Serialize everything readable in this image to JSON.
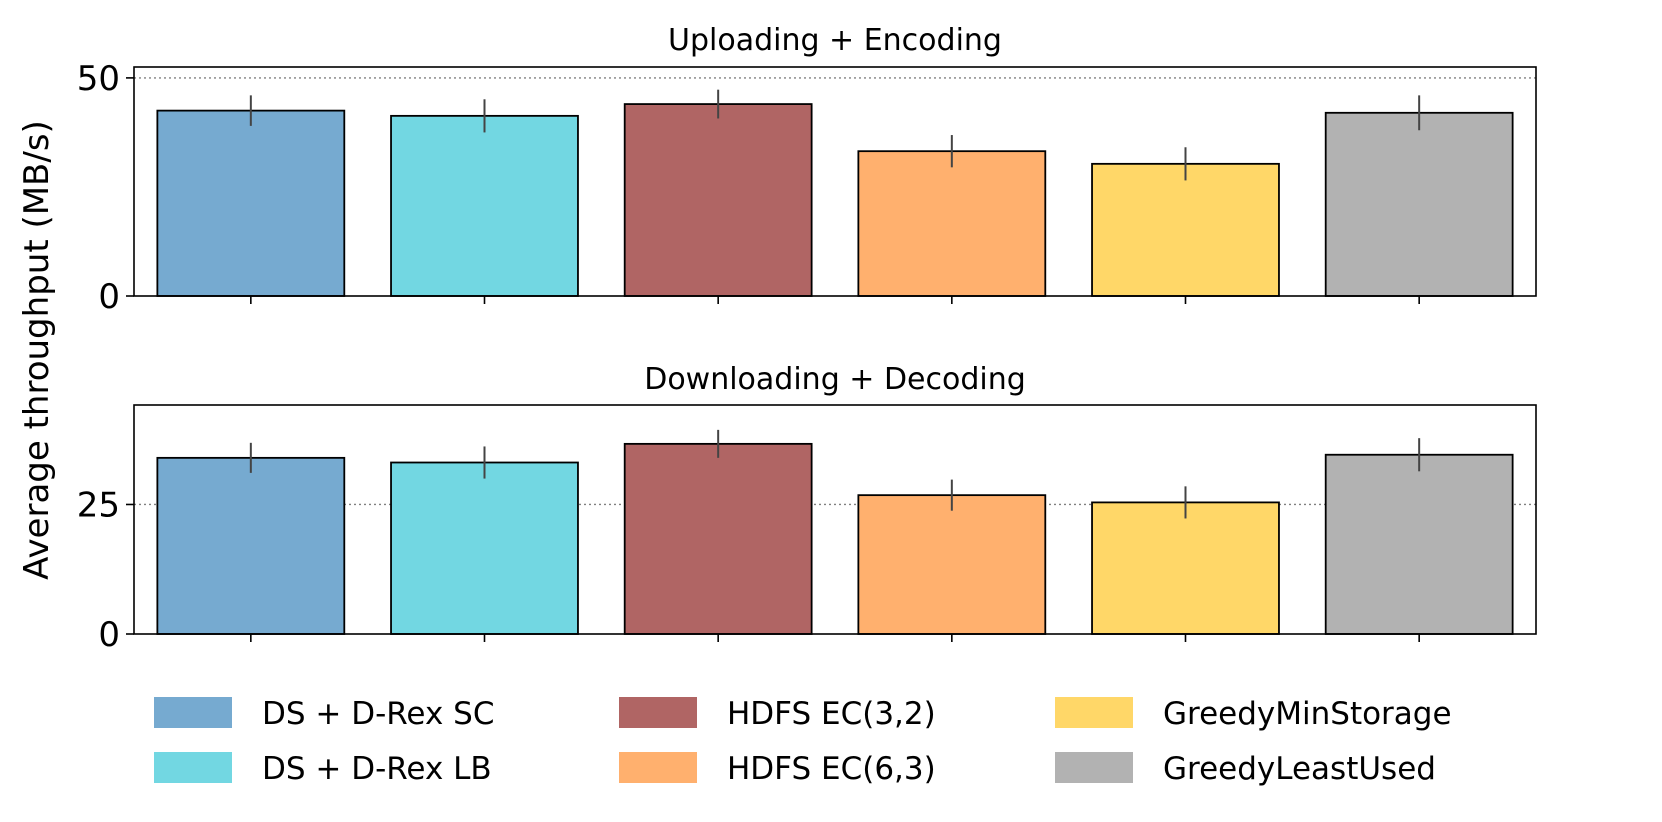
{
  "chart_data": {
    "type": "bar",
    "ylabel": "Average throughput (MB/s)",
    "categories": [
      "DS + D-Rex SC",
      "DS + D-Rex LB",
      "HDFS EC(3,2)",
      "HDFS EC(6,3)",
      "GreedyMinStorage",
      "GreedyLeastUsed"
    ],
    "colors": [
      "#76aad0",
      "#72d7e2",
      "#b06564",
      "#ffb06e",
      "#ffd768",
      "#b2b2b2"
    ],
    "legend": {
      "placement": "bottom",
      "entries": [
        "DS + D-Rex SC",
        "DS + D-Rex LB",
        "HDFS EC(3,2)",
        "HDFS EC(6,3)",
        "GreedyMinStorage",
        "GreedyLeastUsed"
      ]
    },
    "panels": [
      {
        "title": "Uploading + Encoding",
        "values": [
          42.5,
          41.3,
          44.0,
          33.2,
          30.3,
          42.0
        ],
        "errors": [
          3.5,
          3.8,
          3.3,
          3.7,
          3.8,
          4.0
        ],
        "ylim": [
          0,
          52.5
        ],
        "yticks": [
          0,
          50
        ],
        "ytick_labels": [
          "0",
          "50"
        ],
        "reference_line": 50
      },
      {
        "title": "Downloading + Decoding",
        "values": [
          34.0,
          33.1,
          36.7,
          26.8,
          25.4,
          34.6
        ],
        "errors": [
          2.9,
          3.1,
          2.7,
          3.0,
          3.1,
          3.2
        ],
        "ylim": [
          0,
          44.2
        ],
        "yticks": [
          0,
          25
        ],
        "ytick_labels": [
          "0",
          "25"
        ],
        "reference_line": 25
      }
    ]
  }
}
